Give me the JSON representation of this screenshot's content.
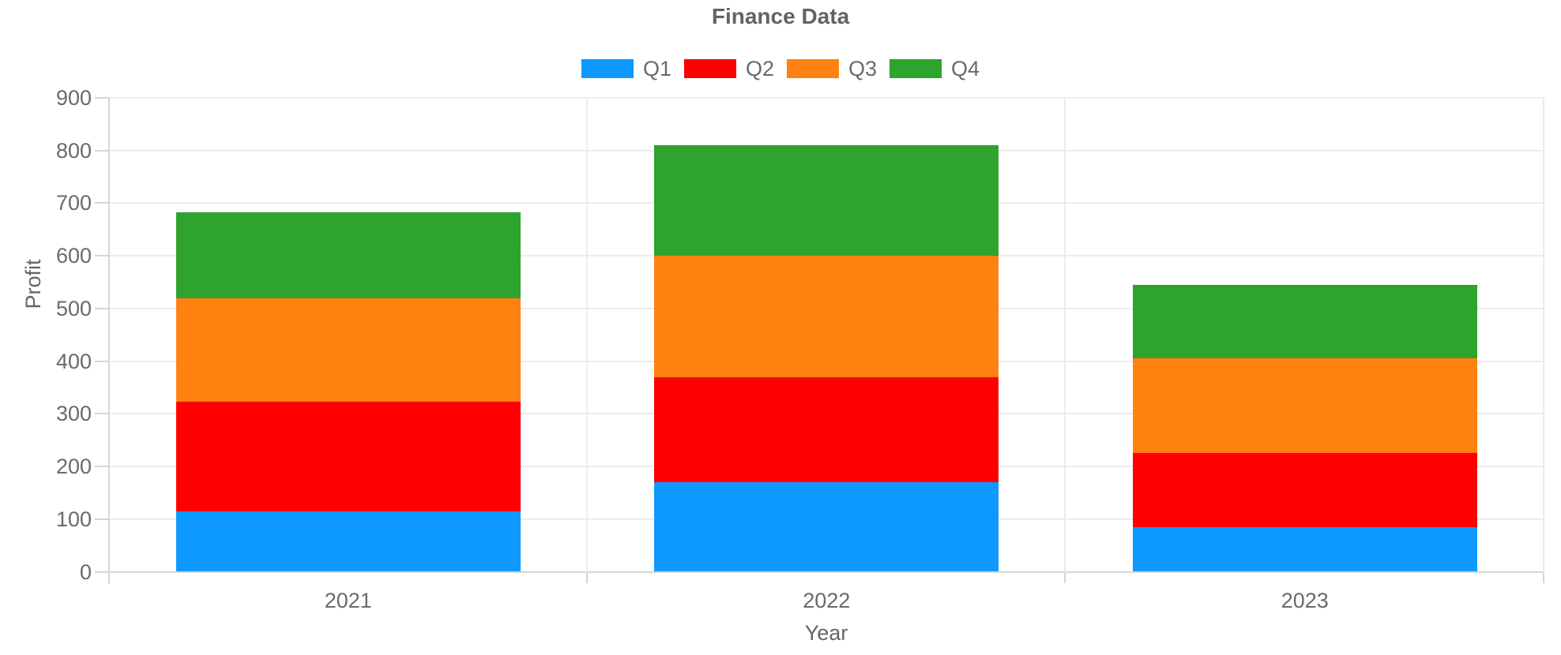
{
  "chart_data": {
    "type": "bar",
    "stacked": true,
    "title": "Finance Data",
    "xlabel": "Year",
    "ylabel": "Profit",
    "categories": [
      "2021",
      "2022",
      "2023"
    ],
    "series": [
      {
        "name": "Q1",
        "color": "#0d99ff",
        "values": [
          115,
          170,
          85
        ]
      },
      {
        "name": "Q2",
        "color": "#ff0000",
        "values": [
          208,
          200,
          140
        ]
      },
      {
        "name": "Q3",
        "color": "#ff8210",
        "values": [
          197,
          230,
          180
        ]
      },
      {
        "name": "Q4",
        "color": "#2ea32e",
        "values": [
          163,
          210,
          140
        ]
      }
    ],
    "stack_totals": [
      683,
      810,
      545
    ],
    "ylim": [
      0,
      900
    ],
    "y_ticks": [
      0,
      100,
      200,
      300,
      400,
      500,
      600,
      700,
      800,
      900
    ],
    "grid": true,
    "legend_position": "top"
  },
  "theme": {
    "background": "#ffffff",
    "grid_color": "#ececec",
    "axis_color": "#d6d6d6",
    "tick_text_color": "#6a6a6a",
    "title_color": "#636363"
  }
}
